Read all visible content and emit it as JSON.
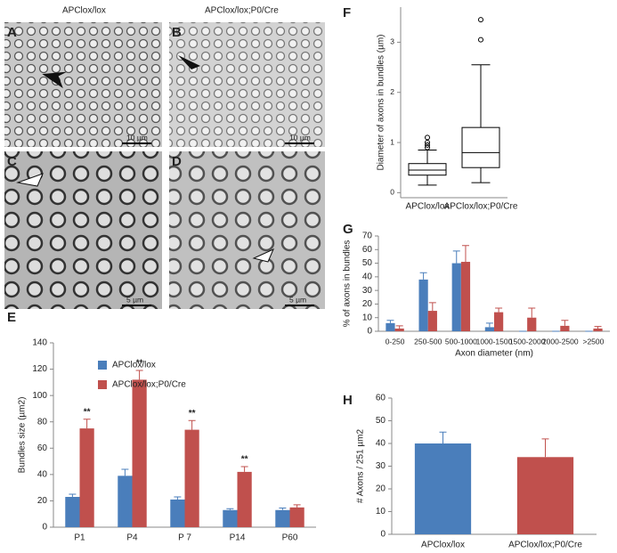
{
  "images": [
    {
      "panel": "A",
      "scale": "10 µm"
    },
    {
      "panel": "B",
      "scale": "10 µm"
    },
    {
      "panel": "C",
      "scale": "5 µm"
    },
    {
      "panel": "D",
      "scale": "5 µm"
    }
  ],
  "column_labels": [
    "APClox/lox",
    "APClox/lox;P0/Cre"
  ],
  "chart_data": [
    {
      "type": "bar",
      "panel": "E",
      "ylabel": "Bundles size (µm2)",
      "categories": [
        "P1",
        "P4",
        "P 7",
        "P14",
        "P60"
      ],
      "series": [
        {
          "name": "APClox/lox",
          "color": "#4a7ebb",
          "values": [
            23,
            39,
            21,
            13,
            13
          ],
          "errors": [
            2,
            5,
            2,
            1,
            1.5
          ]
        },
        {
          "name": "APClox/lox;P0/Cre",
          "color": "#c0504d",
          "values": [
            75,
            112,
            74,
            42,
            15
          ],
          "errors": [
            7,
            7,
            7,
            4,
            2
          ]
        }
      ],
      "significance": [
        "**",
        "**",
        "**",
        "**",
        null
      ],
      "ylim": [
        0,
        140
      ],
      "yticks": [
        0,
        20,
        40,
        60,
        80,
        100,
        120,
        140
      ],
      "legend": "top-left"
    },
    {
      "type": "box",
      "panel": "F",
      "ylabel": "Diameter of axons in bundles (µm)",
      "categories": [
        "APClox/lox",
        "APClox/lox;P0/Cre"
      ],
      "boxes": [
        {
          "whislo": 0.15,
          "q1": 0.35,
          "med": 0.45,
          "q3": 0.58,
          "whishi": 0.85,
          "fliers": [
            0.9,
            0.95,
            1.0,
            1.1
          ]
        },
        {
          "whislo": 0.2,
          "q1": 0.5,
          "med": 0.8,
          "q3": 1.3,
          "whishi": 2.55,
          "fliers": [
            3.05,
            3.45
          ]
        }
      ],
      "ylim": [
        -0.1,
        3.7
      ],
      "yticks": [
        0,
        1,
        2,
        3
      ]
    },
    {
      "type": "bar",
      "panel": "G",
      "ylabel": "% of axons in bundles",
      "xlabel": "Axon diameter (nm)",
      "categories": [
        "0-250",
        "250-500",
        "500-1000",
        "1000-1500",
        "1500-2000",
        "2000-2500",
        ">2500"
      ],
      "series": [
        {
          "color": "#4a7ebb",
          "values": [
            6,
            38,
            50,
            3,
            0,
            0,
            0
          ],
          "errors": [
            2,
            5,
            9,
            3,
            0,
            0,
            0
          ]
        },
        {
          "color": "#c0504d",
          "values": [
            2,
            15,
            51,
            14,
            10,
            4,
            2
          ],
          "errors": [
            2,
            6,
            12,
            3,
            7,
            4,
            1.5
          ]
        }
      ],
      "ylim": [
        0,
        70
      ],
      "yticks": [
        0,
        10,
        20,
        30,
        40,
        50,
        60,
        70
      ]
    },
    {
      "type": "bar",
      "panel": "H",
      "ylabel": "# Axons / 251 µm2",
      "categories": [
        "APClox/lox",
        "APClox/lox;P0/Cre"
      ],
      "series": [
        {
          "colors": [
            "#4a7ebb",
            "#c0504d"
          ],
          "values": [
            40,
            34
          ],
          "errors": [
            5,
            8
          ]
        }
      ],
      "ylim": [
        0,
        60
      ],
      "yticks": [
        0,
        10,
        20,
        30,
        40,
        50,
        60
      ]
    }
  ]
}
